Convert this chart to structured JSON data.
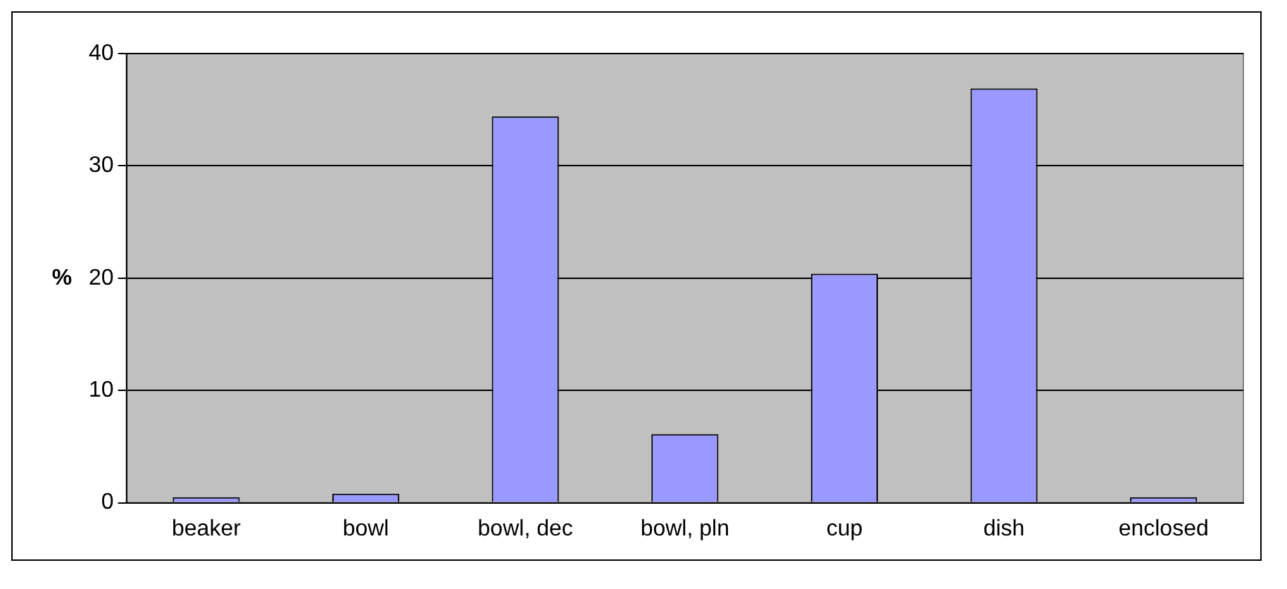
{
  "chart_data": {
    "type": "bar",
    "ylabel": "%",
    "categories": [
      "beaker",
      "bowl",
      "bowl, dec",
      "bowl, pln",
      "cup",
      "dish",
      "enclosed"
    ],
    "values": [
      0.5,
      0.8,
      34.4,
      6.1,
      20.4,
      36.9,
      0.5
    ],
    "color": "#9999ff",
    "ylim": [
      0,
      40
    ],
    "yticks": [
      0,
      10,
      20,
      30,
      40
    ],
    "grid": "y",
    "legend": false
  }
}
